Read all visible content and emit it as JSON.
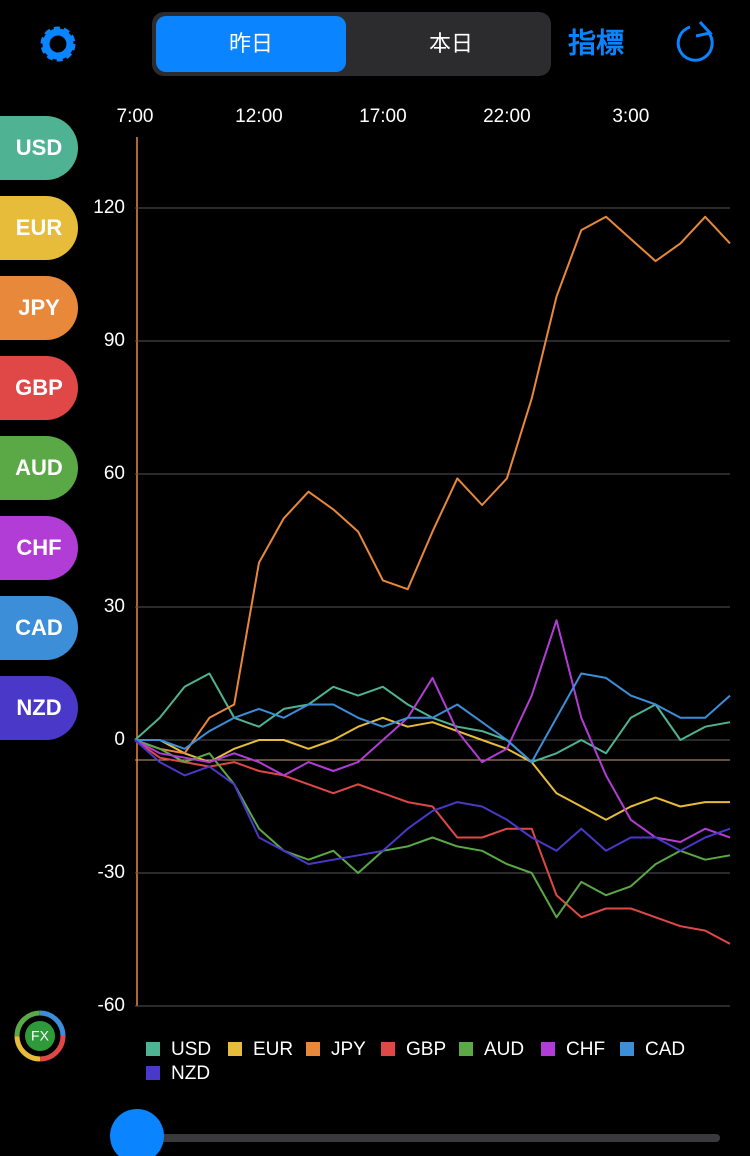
{
  "ui": {
    "tabs": [
      "昨日",
      "本日"
    ],
    "indicator": "指標",
    "logo": "FX"
  },
  "chart_data": {
    "type": "line",
    "categories": [
      "7:00",
      null,
      null,
      null,
      null,
      "12:00",
      null,
      null,
      null,
      null,
      "17:00",
      null,
      null,
      null,
      null,
      "22:00",
      null,
      null,
      null,
      null,
      "3:00",
      null,
      null,
      null,
      null
    ],
    "ylim": [
      -60,
      136
    ],
    "yticks": [
      -60,
      -30,
      0,
      30,
      60,
      90,
      120
    ],
    "grid": true,
    "series": [
      {
        "name": "USD",
        "color": "#4fb393",
        "values": [
          0,
          5,
          12,
          15,
          5,
          3,
          7,
          8,
          12,
          10,
          12,
          8,
          5,
          3,
          2,
          0,
          -5,
          -3,
          0,
          -3,
          5,
          8,
          0,
          3,
          4
        ]
      },
      {
        "name": "EUR",
        "color": "#e6bc3a",
        "values": [
          0,
          0,
          -3,
          -5,
          -2,
          0,
          0,
          -2,
          0,
          3,
          5,
          3,
          4,
          2,
          0,
          -2,
          -5,
          -12,
          -15,
          -18,
          -15,
          -13,
          -15,
          -14,
          -14
        ]
      },
      {
        "name": "JPY",
        "color": "#e8883a",
        "values": [
          0,
          -2,
          -3,
          5,
          8,
          40,
          50,
          56,
          52,
          47,
          36,
          34,
          47,
          59,
          53,
          59,
          77,
          100,
          115,
          118,
          113,
          108,
          112,
          118,
          112
        ]
      },
      {
        "name": "GBP",
        "color": "#e04848",
        "values": [
          0,
          -4,
          -5,
          -6,
          -5,
          -7,
          -8,
          -10,
          -12,
          -10,
          -12,
          -14,
          -15,
          -22,
          -22,
          -20,
          -20,
          -35,
          -40,
          -38,
          -38,
          -40,
          -42,
          -43,
          -46
        ]
      },
      {
        "name": "AUD",
        "color": "#5aa846",
        "values": [
          0,
          -2,
          -5,
          -3,
          -10,
          -20,
          -25,
          -27,
          -25,
          -30,
          -25,
          -24,
          -22,
          -24,
          -25,
          -28,
          -30,
          -40,
          -32,
          -35,
          -33,
          -28,
          -25,
          -27,
          -26
        ]
      },
      {
        "name": "CHF",
        "color": "#b23cd6",
        "values": [
          0,
          -3,
          -4,
          -5,
          -3,
          -5,
          -8,
          -5,
          -7,
          -5,
          0,
          5,
          14,
          2,
          -5,
          -2,
          10,
          27,
          5,
          -8,
          -18,
          -22,
          -23,
          -20,
          -22
        ]
      },
      {
        "name": "CAD",
        "color": "#3c8ed8",
        "values": [
          0,
          0,
          -2,
          2,
          5,
          7,
          5,
          8,
          8,
          5,
          3,
          5,
          5,
          8,
          4,
          0,
          -5,
          5,
          15,
          14,
          10,
          8,
          5,
          5,
          10
        ]
      },
      {
        "name": "NZD",
        "color": "#4a38c8",
        "values": [
          0,
          -5,
          -8,
          -6,
          -10,
          -22,
          -25,
          -28,
          -27,
          -26,
          -25,
          -20,
          -16,
          -14,
          -15,
          -18,
          -22,
          -25,
          -20,
          -25,
          -22,
          -22,
          -25,
          -22,
          -20
        ]
      }
    ]
  }
}
